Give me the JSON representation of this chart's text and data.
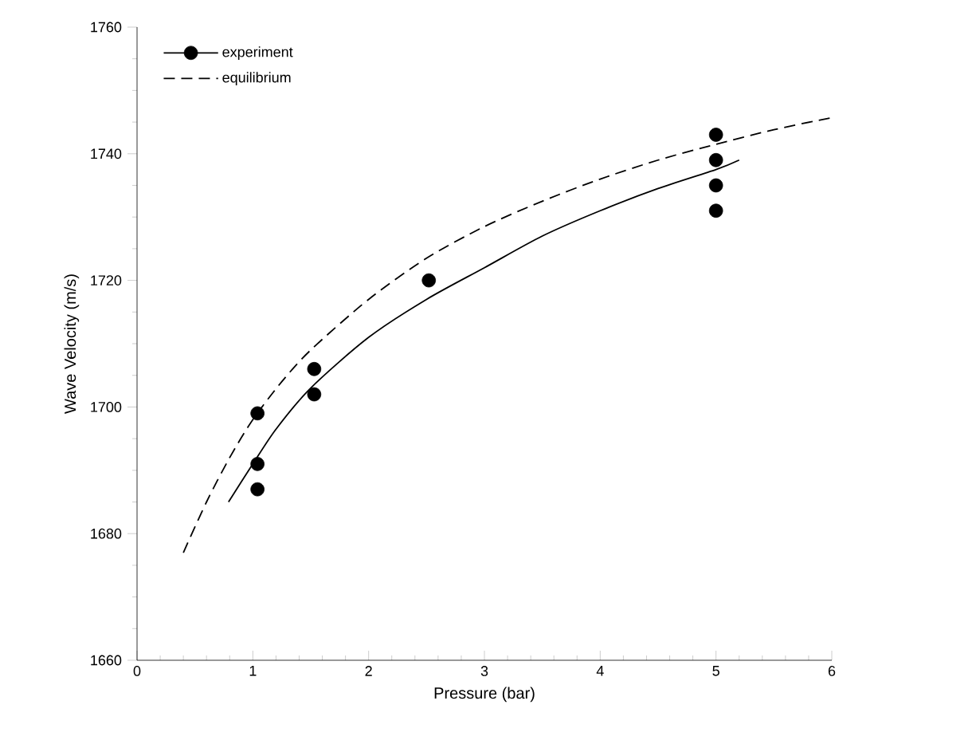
{
  "chart_data": {
    "type": "scatter",
    "xlabel": "Pressure (bar)",
    "ylabel": "Wave Velocity (m/s)",
    "xlim": [
      0,
      6
    ],
    "xticks": [
      0,
      1,
      2,
      3,
      4,
      5,
      6
    ],
    "ylim": [
      1660,
      1760
    ],
    "yticks": [
      1660,
      1680,
      1700,
      1720,
      1740,
      1760
    ],
    "legend": "top left",
    "grid": false,
    "series": [
      {
        "name": "experiment",
        "marker": "circle",
        "color": "#000000",
        "x": [
          1.04,
          1.04,
          1.04,
          1.53,
          1.53,
          2.52,
          5.0,
          5.0,
          5.0,
          5.0
        ],
        "values": [
          1699,
          1691,
          1687,
          1706,
          1702,
          1720,
          1743,
          1739,
          1735,
          1731
        ]
      },
      {
        "type": "line",
        "line_style": "solid",
        "marker": "none",
        "color": "#000000",
        "x": [
          0.79,
          1.0,
          1.2,
          1.5,
          2.0,
          2.5,
          3.0,
          3.5,
          4.0,
          4.5,
          5.0,
          5.2
        ],
        "values": [
          1685,
          1691,
          1696.5,
          1703,
          1711,
          1717,
          1722,
          1727,
          1731,
          1734.5,
          1737.5,
          1739
        ]
      },
      {
        "name": "equilibrium",
        "type": "line",
        "line_style": "dashed",
        "marker": "none",
        "color": "#000000",
        "x": [
          0.4,
          0.6,
          0.8,
          1.0,
          1.25,
          1.5,
          2.0,
          2.5,
          3.0,
          3.5,
          4.0,
          4.5,
          5.0,
          5.5,
          6.0
        ],
        "values": [
          1677,
          1685,
          1692,
          1698,
          1704,
          1709,
          1717,
          1723.5,
          1728.5,
          1732.5,
          1736,
          1739,
          1741.5,
          1743.8,
          1745.7
        ]
      }
    ]
  }
}
